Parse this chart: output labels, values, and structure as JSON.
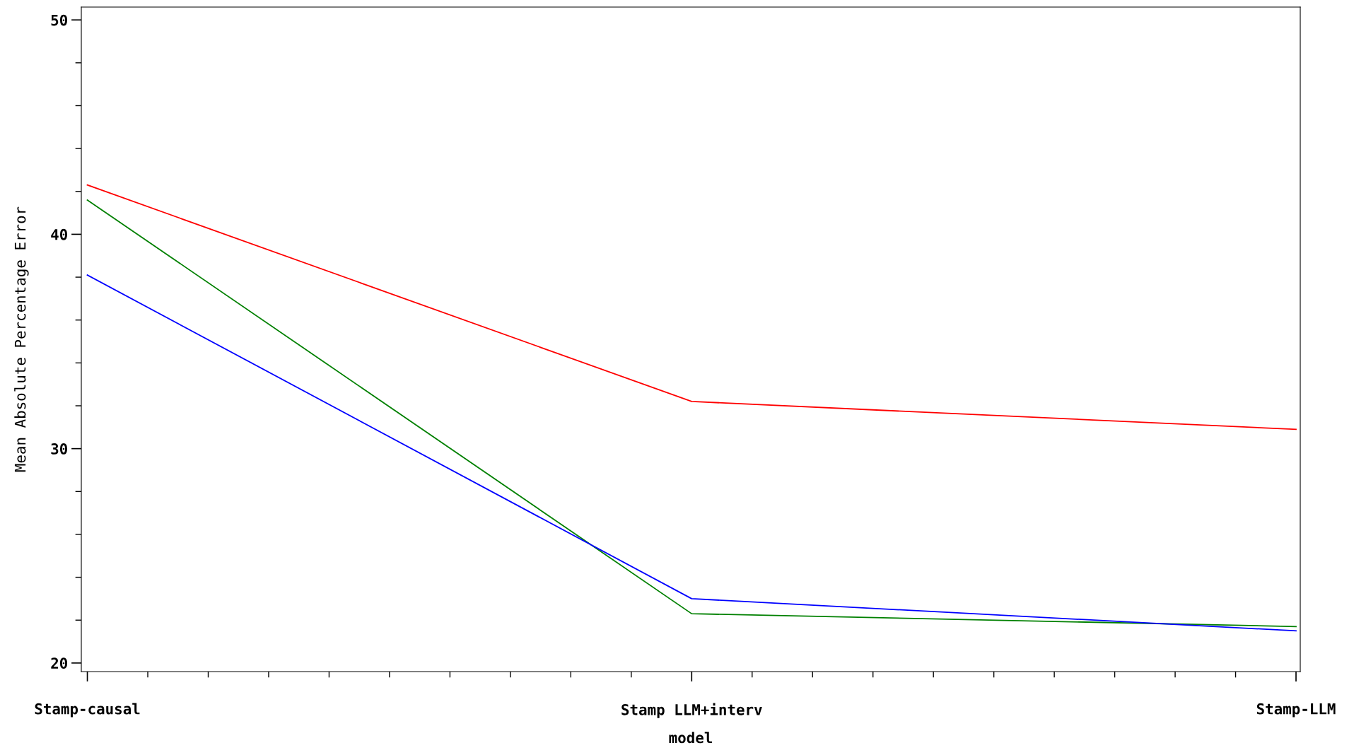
{
  "chart_data": {
    "type": "line",
    "xlabel": "model",
    "ylabel": "Mean Absolute Percentage Error",
    "categories": [
      "Stamp-causal",
      "Stamp LLM+interv",
      "Stamp-LLM"
    ],
    "series": [
      {
        "color": "#ff0000",
        "values": [
          42.3,
          32.2,
          30.9
        ]
      },
      {
        "color": "#008000",
        "values": [
          41.6,
          22.3,
          21.7
        ]
      },
      {
        "color": "#0000ff",
        "values": [
          38.1,
          23.0,
          21.5
        ]
      }
    ],
    "ylim": [
      19.6,
      50.6
    ],
    "yticks": [
      20,
      30,
      40,
      50
    ],
    "grid": false,
    "marker": "none",
    "line_style": "solid"
  }
}
